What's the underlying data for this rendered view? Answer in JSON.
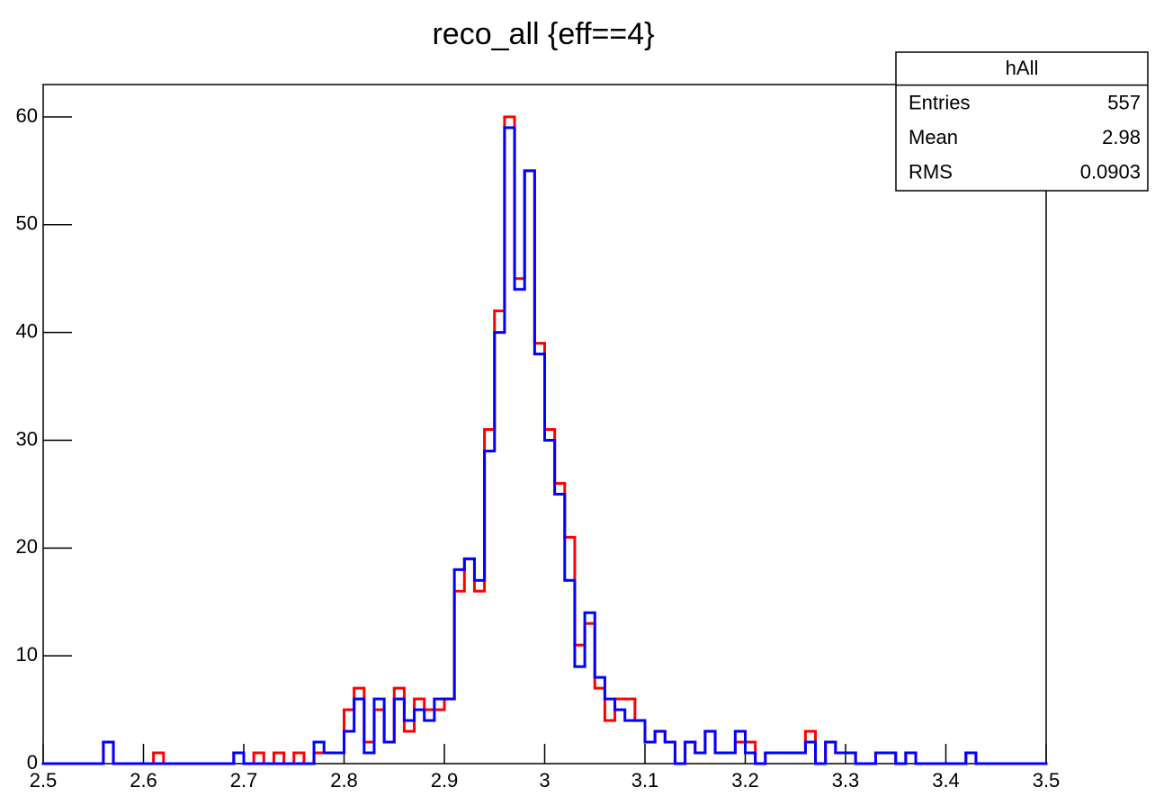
{
  "chart_data": {
    "type": "histogram",
    "title": "reco_all {eff==4}",
    "xlim": [
      2.5,
      3.5
    ],
    "ylim": [
      0,
      63
    ],
    "xticks": [
      2.5,
      2.6,
      2.7,
      2.8,
      2.9,
      3,
      3.1,
      3.2,
      3.3,
      3.4,
      3.5
    ],
    "yticks": [
      0,
      10,
      20,
      30,
      40,
      50,
      60
    ],
    "bins": [
      2.5,
      2.51,
      2.52,
      2.53,
      2.54,
      2.55,
      2.56,
      2.57,
      2.58,
      2.59,
      2.6,
      2.61,
      2.62,
      2.63,
      2.64,
      2.65,
      2.66,
      2.67,
      2.68,
      2.69,
      2.7,
      2.71,
      2.72,
      2.73,
      2.74,
      2.75,
      2.76,
      2.77,
      2.78,
      2.79,
      2.8,
      2.81,
      2.82,
      2.83,
      2.84,
      2.85,
      2.86,
      2.87,
      2.88,
      2.89,
      2.9,
      2.91,
      2.92,
      2.93,
      2.94,
      2.95,
      2.96,
      2.97,
      2.98,
      2.99,
      3,
      3.01,
      3.02,
      3.03,
      3.04,
      3.05,
      3.06,
      3.07,
      3.08,
      3.09,
      3.1,
      3.11,
      3.12,
      3.13,
      3.14,
      3.15,
      3.16,
      3.17,
      3.18,
      3.19,
      3.2,
      3.21,
      3.22,
      3.23,
      3.24,
      3.25,
      3.26,
      3.27,
      3.28,
      3.29,
      3.3,
      3.31,
      3.32,
      3.33,
      3.34,
      3.35,
      3.36,
      3.37,
      3.38,
      3.39,
      3.4,
      3.41,
      3.42,
      3.43,
      3.44,
      3.45,
      3.46,
      3.47,
      3.48,
      3.49,
      3.5
    ],
    "series": [
      {
        "color": "#ff0000",
        "values": [
          0,
          0,
          0,
          0,
          0,
          0,
          2,
          0,
          0,
          0,
          0,
          1,
          0,
          0,
          0,
          0,
          0,
          0,
          0,
          1,
          0,
          1,
          0,
          1,
          0,
          1,
          0,
          1,
          1,
          1,
          5,
          7,
          2,
          5,
          2,
          7,
          3,
          6,
          5,
          5,
          6,
          16,
          19,
          16,
          31,
          42,
          60,
          45,
          55,
          39,
          31,
          26,
          21,
          11,
          13,
          7,
          4,
          6,
          6,
          4,
          2,
          3,
          2,
          0,
          2,
          1,
          3,
          1,
          1,
          2,
          2,
          0,
          1,
          1,
          1,
          1,
          3,
          0,
          2,
          1,
          1,
          0,
          0,
          1,
          1,
          0,
          1,
          0,
          0,
          0,
          0,
          0,
          1,
          0,
          0,
          0,
          0,
          0,
          0,
          0
        ]
      },
      {
        "color": "#0000ff",
        "values": [
          0,
          0,
          0,
          0,
          0,
          0,
          2,
          0,
          0,
          0,
          0,
          0,
          0,
          0,
          0,
          0,
          0,
          0,
          0,
          1,
          0,
          0,
          0,
          0,
          0,
          0,
          0,
          2,
          1,
          1,
          3,
          6,
          1,
          6,
          2,
          6,
          4,
          5,
          4,
          6,
          6,
          18,
          19,
          17,
          29,
          40,
          59,
          44,
          55,
          38,
          30,
          25,
          17,
          9,
          14,
          8,
          6,
          5,
          4,
          4,
          2,
          3,
          2,
          0,
          2,
          1,
          3,
          1,
          1,
          3,
          1,
          0,
          1,
          1,
          1,
          1,
          2,
          0,
          2,
          1,
          1,
          0,
          0,
          1,
          1,
          0,
          1,
          0,
          0,
          0,
          0,
          0,
          1,
          0,
          0,
          0,
          0,
          0,
          0,
          0
        ]
      }
    ],
    "stats": {
      "title": "hAll",
      "rows": [
        {
          "label": "Entries",
          "value": 557
        },
        {
          "label": "Mean",
          "value": 2.98
        },
        {
          "label": "RMS",
          "value": 0.0903
        }
      ]
    }
  }
}
